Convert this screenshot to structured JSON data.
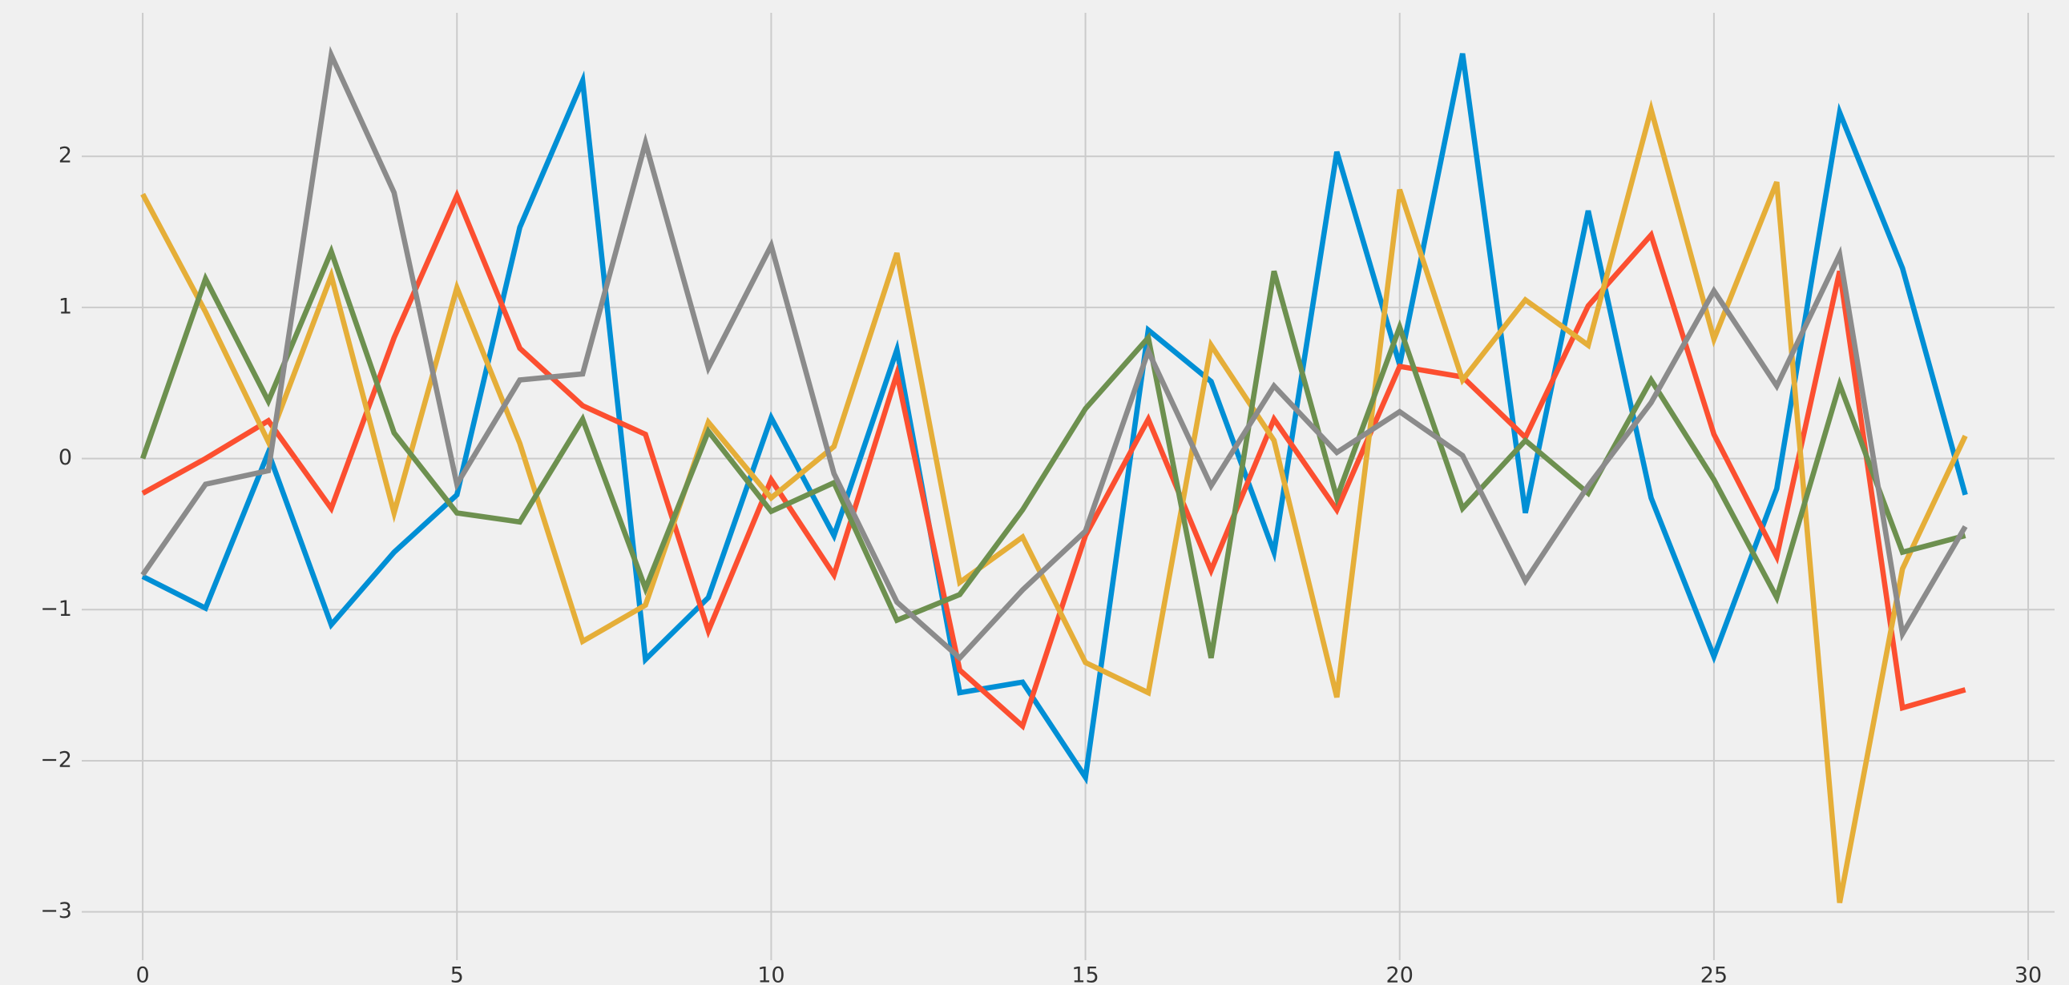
{
  "chart_data": {
    "type": "line",
    "x": [
      0,
      1,
      2,
      3,
      4,
      5,
      6,
      7,
      8,
      9,
      10,
      11,
      12,
      13,
      14,
      15,
      16,
      17,
      18,
      19,
      20,
      21,
      22,
      23,
      24,
      25,
      26,
      27,
      28,
      29
    ],
    "series": [
      {
        "color": "#008fd5",
        "values": [
          -0.78,
          -0.99,
          0.04,
          -1.1,
          -0.62,
          -0.24,
          1.53,
          2.5,
          -1.33,
          -0.92,
          0.27,
          -0.51,
          0.72,
          -1.55,
          -1.48,
          -2.11,
          0.85,
          0.51,
          -0.62,
          2.03,
          0.62,
          2.68,
          -0.36,
          1.64,
          -0.26,
          -1.31,
          -0.2,
          2.29,
          1.26,
          -0.24
        ]
      },
      {
        "color": "#fc4f30",
        "values": [
          -0.23,
          0.0,
          0.25,
          -0.33,
          0.8,
          1.74,
          0.73,
          0.35,
          0.16,
          -1.14,
          -0.14,
          -0.77,
          0.56,
          -1.4,
          -1.77,
          -0.51,
          0.26,
          -0.74,
          0.26,
          -0.34,
          0.61,
          0.54,
          0.14,
          1.01,
          1.48,
          0.16,
          -0.65,
          1.24,
          -1.65,
          -1.53
        ]
      },
      {
        "color": "#e5ae38",
        "values": [
          1.75,
          0.97,
          0.11,
          1.21,
          -0.36,
          1.13,
          0.1,
          -1.21,
          -0.97,
          0.24,
          -0.26,
          0.08,
          1.36,
          -0.82,
          -0.52,
          -1.35,
          -1.55,
          0.75,
          0.12,
          -1.58,
          1.78,
          0.52,
          1.05,
          0.75,
          2.31,
          0.79,
          1.83,
          -2.94,
          -0.73,
          0.15
        ]
      },
      {
        "color": "#6d904f",
        "values": [
          0.0,
          1.19,
          0.38,
          1.37,
          0.17,
          -0.36,
          -0.42,
          0.26,
          -0.86,
          0.18,
          -0.35,
          -0.16,
          -1.07,
          -0.9,
          -0.34,
          0.33,
          0.8,
          -1.32,
          1.24,
          -0.26,
          0.87,
          -0.33,
          0.12,
          -0.23,
          0.52,
          -0.14,
          -0.92,
          0.49,
          -0.62,
          -0.51
        ]
      },
      {
        "color": "#8b8b8b",
        "values": [
          -0.77,
          -0.17,
          -0.08,
          2.67,
          1.76,
          -0.17,
          0.52,
          0.56,
          2.09,
          0.6,
          1.41,
          -0.1,
          -0.95,
          -1.32,
          -0.87,
          -0.48,
          0.71,
          -0.18,
          0.48,
          0.04,
          0.31,
          0.02,
          -0.81,
          -0.18,
          0.37,
          1.11,
          0.48,
          1.35,
          -1.16,
          -0.45
        ]
      }
    ],
    "xlim": [
      -0.97,
      30.42
    ],
    "ylim": [
      -3.32,
      2.95
    ],
    "xticks": [
      0,
      5,
      10,
      15,
      20,
      25,
      30
    ],
    "yticks": [
      {
        "value": -3,
        "label": "−3"
      },
      {
        "value": -2,
        "label": "−2"
      },
      {
        "value": -1,
        "label": "−1"
      },
      0,
      1,
      2
    ],
    "grid": true
  }
}
